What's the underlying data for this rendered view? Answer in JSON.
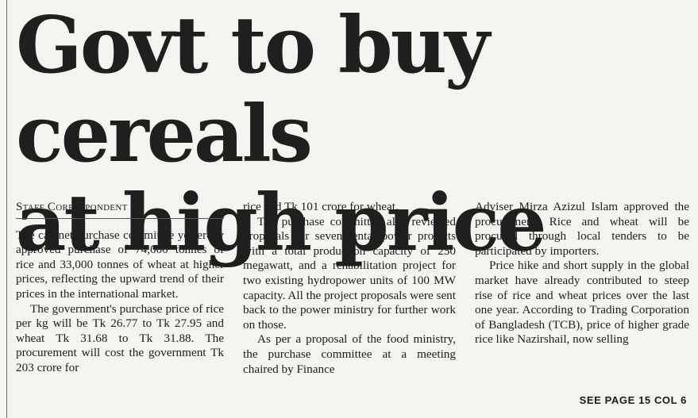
{
  "article": {
    "headline_line1": "Govt to buy cereals",
    "headline_line2": "at high price",
    "byline": "Staff Correspondent",
    "col1": [
      "The cabinet purchase committee yesterday approved purchase of 74,000 tonnes of rice and 33,000 tonnes of wheat at higher prices, reflecting the upward trend of their prices in the international market.",
      "The government's purchase price of rice per kg will be Tk 26.77 to Tk 27.95 and wheat Tk 31.68 to Tk 31.88. The procurement will cost the government Tk 203 crore for"
    ],
    "col2": [
      "rice and Tk 101 crore for wheat.",
      "The purchase committee also reviewed proposals for seven rental power projects with a total production capacity of 250 megawatt, and a rehabilitation project for two existing hydropower units of 100 MW capacity. All the project proposals were sent back to the power ministry for further work on those.",
      "As per a proposal of the food ministry, the purchase committee at a meeting chaired by Finance"
    ],
    "col3": [
      "Adviser Mirza Azizul Islam approved the procurement. Rice and wheat will be procured through local tenders to be participated by importers.",
      "Price hike and short supply in the global market have already contributed to steep rise of rice and wheat prices over the last one year. According to Trading Corporation of Bangladesh (TCB), price of higher grade rice like Nazirshail, now selling"
    ],
    "jump": "SEE PAGE 15 COL 6"
  }
}
